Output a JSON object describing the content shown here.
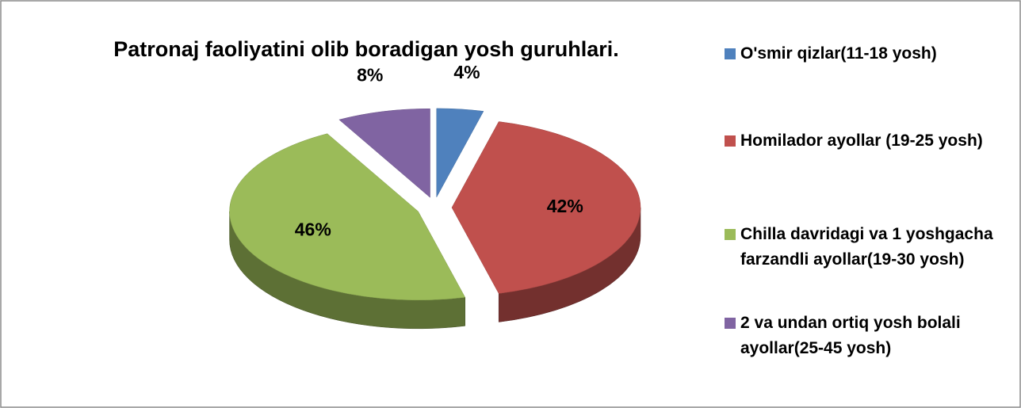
{
  "chart_data": {
    "type": "pie",
    "title": "Patronaj faoliyatini olib boradigan yosh guruhlari.",
    "categories": [
      "O'smir qizlar(11-18 yosh)",
      "Homilador ayollar (19-25 yosh)",
      "Chilla davridagi va 1 yoshgacha farzandli ayollar(19-30 yosh)",
      "2 va undan ortiq yosh bolali ayollar(25-45 yosh)"
    ],
    "values": [
      4,
      42,
      46,
      8
    ],
    "value_labels": [
      "4%",
      "42%",
      "46%",
      "8%"
    ],
    "colors": [
      "#4f81bd",
      "#c0504d",
      "#9bbb59",
      "#8064a2"
    ],
    "legend": "right"
  }
}
